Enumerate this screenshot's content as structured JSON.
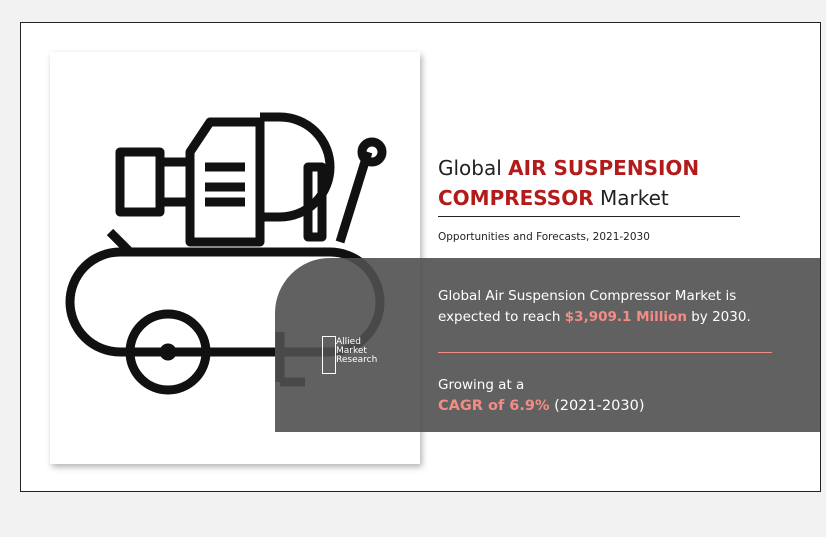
{
  "infographic": {
    "title": {
      "prefix": "Global",
      "highlight_1": "AIR SUSPENSION",
      "highlight_2": "COMPRESSOR",
      "suffix": "Market"
    },
    "subtitle": "Opportunities and Forecasts, 2021-2030",
    "statement_1": {
      "text": "Global Air Suspension Compressor Market is expected to reach",
      "value": "$3,909.1 Million",
      "suffix": "by 2030."
    },
    "statement_2": {
      "text": "Growing at a",
      "value": "CAGR of 6.9%",
      "suffix": "(2021-2030)"
    },
    "logo": {
      "line_1": "Allied",
      "line_2": "Market",
      "line_3": "Research"
    }
  }
}
